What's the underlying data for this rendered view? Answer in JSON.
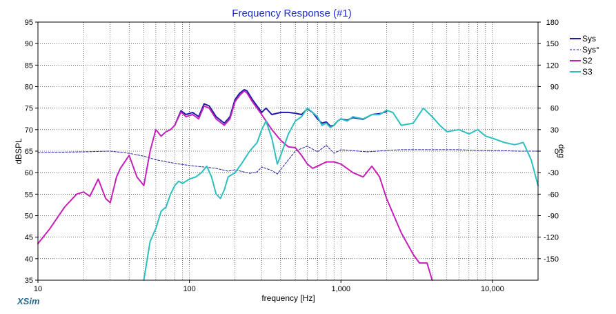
{
  "app": {
    "brand": "XSim"
  },
  "chart_data": {
    "type": "line",
    "title": "Frequency Response (#1)",
    "xlabel": "frequency [Hz]",
    "ylabel": "dBSPL",
    "y2label": "deg",
    "xscale": "log",
    "xlim": [
      10,
      20000
    ],
    "ylim": [
      35,
      95
    ],
    "y2lim": [
      -180,
      180
    ],
    "xticks": [
      {
        "value": 10,
        "label": "10"
      },
      {
        "value": 100,
        "label": "100"
      },
      {
        "value": 1000,
        "label": "1,000"
      },
      {
        "value": 10000,
        "label": "10,000"
      }
    ],
    "yticks": [
      {
        "value": 95,
        "label": "95"
      },
      {
        "value": 90,
        "label": "90"
      },
      {
        "value": 85,
        "label": "85"
      },
      {
        "value": 80,
        "label": "80"
      },
      {
        "value": 75,
        "label": "75"
      },
      {
        "value": 70,
        "label": "70"
      },
      {
        "value": 65,
        "label": "65"
      },
      {
        "value": 60,
        "label": "60"
      },
      {
        "value": 55,
        "label": "55"
      },
      {
        "value": 50,
        "label": "50"
      },
      {
        "value": 45,
        "label": "45"
      },
      {
        "value": 40,
        "label": "40"
      },
      {
        "value": 35,
        "label": "35"
      }
    ],
    "y2ticks": [
      {
        "value": 180,
        "label": "180"
      },
      {
        "value": 150,
        "label": "150"
      },
      {
        "value": 120,
        "label": "120"
      },
      {
        "value": 90,
        "label": "90"
      },
      {
        "value": 60,
        "label": "60"
      },
      {
        "value": 30,
        "label": "30"
      },
      {
        "value": 0,
        "label": "0"
      },
      {
        "value": -30,
        "label": "-30"
      },
      {
        "value": -60,
        "label": "-60"
      },
      {
        "value": -90,
        "label": "-90"
      },
      {
        "value": -120,
        "label": "-120"
      },
      {
        "value": -150,
        "label": "-150"
      }
    ],
    "grid": true,
    "legend_position": "top-right",
    "series": [
      {
        "name": "Sys",
        "color": "#1c1ca8",
        "dash": "none",
        "axis": "left",
        "x": [
          80,
          88,
          95,
          105,
          115,
          125,
          135,
          150,
          170,
          185,
          200,
          215,
          230,
          240,
          260,
          300,
          320,
          350,
          400,
          450,
          500,
          550,
          600,
          650,
          700,
          750,
          800,
          850,
          900,
          950,
          1000,
          1100,
          1200,
          1400,
          1600,
          1800,
          2000
        ],
        "y": [
          71,
          74.4,
          73.5,
          74,
          73,
          76,
          75.5,
          73,
          71.5,
          73,
          77,
          78.5,
          79.3,
          79,
          77,
          74,
          75,
          73.5,
          74,
          74,
          73.8,
          73.5,
          74.8,
          74,
          72.5,
          71.5,
          71.8,
          70.8,
          71,
          72,
          72.5,
          72.2,
          72.8,
          72.4,
          73.5,
          73.7,
          74.2
        ]
      },
      {
        "name": "Sys°",
        "color": "#1c1ca8",
        "dash": "3,2",
        "axis": "right",
        "x": [
          10,
          20,
          30,
          40,
          50,
          60,
          80,
          100,
          150,
          180,
          200,
          250,
          280,
          300,
          350,
          380,
          420,
          500,
          600,
          700,
          800,
          900,
          1000,
          1500,
          2000,
          2500,
          3000,
          4000,
          6000,
          8000,
          10000,
          15000,
          20000
        ],
        "y": [
          -2,
          -1,
          0,
          -3,
          -7,
          -12,
          -17,
          -20,
          -24,
          -28,
          -26,
          -31,
          -29,
          -22,
          -27,
          -32,
          -20,
          0,
          7,
          -1,
          8,
          -3,
          2,
          -1,
          1,
          2,
          2,
          2,
          2,
          1,
          1,
          0,
          0
        ]
      },
      {
        "name": "S2",
        "color": "#c61fb9",
        "dash": "none",
        "axis": "left",
        "x": [
          10,
          12,
          15,
          18,
          20,
          22,
          25,
          28,
          30,
          33,
          35,
          40,
          45,
          50,
          55,
          60,
          65,
          70,
          75,
          80,
          88,
          95,
          105,
          115,
          125,
          135,
          150,
          170,
          185,
          200,
          215,
          230,
          240,
          260,
          300,
          350,
          400,
          450,
          500,
          550,
          600,
          650,
          700,
          800,
          900,
          1000,
          1200,
          1400,
          1600,
          1800,
          2000,
          2500,
          3000,
          3300,
          3700,
          4000
        ],
        "y": [
          43.5,
          47,
          52,
          55,
          55.5,
          54.5,
          58.5,
          54,
          53,
          59,
          61,
          64,
          59,
          57,
          65,
          70,
          68.5,
          69.5,
          70,
          71,
          74.1,
          73,
          73.5,
          72.5,
          75.5,
          75,
          72.5,
          71,
          72.5,
          76.5,
          78,
          79,
          78.5,
          76.5,
          73.5,
          70,
          67.5,
          66,
          65.8,
          64,
          62,
          61,
          61.5,
          62.5,
          62.5,
          62,
          60,
          59,
          61.5,
          59,
          54,
          46,
          41,
          39,
          39,
          35
        ]
      },
      {
        "name": "S3",
        "color": "#2cbfc0",
        "dash": "none",
        "axis": "left",
        "x": [
          50,
          55,
          60,
          65,
          70,
          75,
          80,
          85,
          90,
          100,
          110,
          120,
          130,
          140,
          150,
          160,
          170,
          180,
          200,
          220,
          250,
          280,
          300,
          320,
          350,
          380,
          400,
          450,
          500,
          550,
          600,
          650,
          700,
          750,
          800,
          850,
          900,
          950,
          1000,
          1100,
          1200,
          1400,
          1600,
          1800,
          2000,
          2200,
          2500,
          3000,
          3500,
          4000,
          4500,
          5000,
          6000,
          7000,
          8000,
          9000,
          10000,
          12000,
          14000,
          16000,
          18000,
          20000
        ],
        "y": [
          35,
          44,
          47,
          51,
          52,
          55,
          57,
          58,
          57.5,
          58.5,
          59,
          60,
          61.5,
          59,
          55,
          54,
          56,
          59,
          60,
          62,
          65,
          67,
          70,
          72,
          68,
          62,
          64,
          69,
          72,
          73,
          75,
          74,
          73,
          71,
          71.5,
          70.5,
          71,
          72,
          72.5,
          72,
          73,
          72.5,
          73.5,
          73.5,
          74.5,
          74,
          71,
          71.5,
          75,
          73,
          71,
          69.5,
          70,
          69,
          70,
          68.5,
          68,
          67,
          66.5,
          67,
          63,
          57
        ]
      }
    ]
  }
}
